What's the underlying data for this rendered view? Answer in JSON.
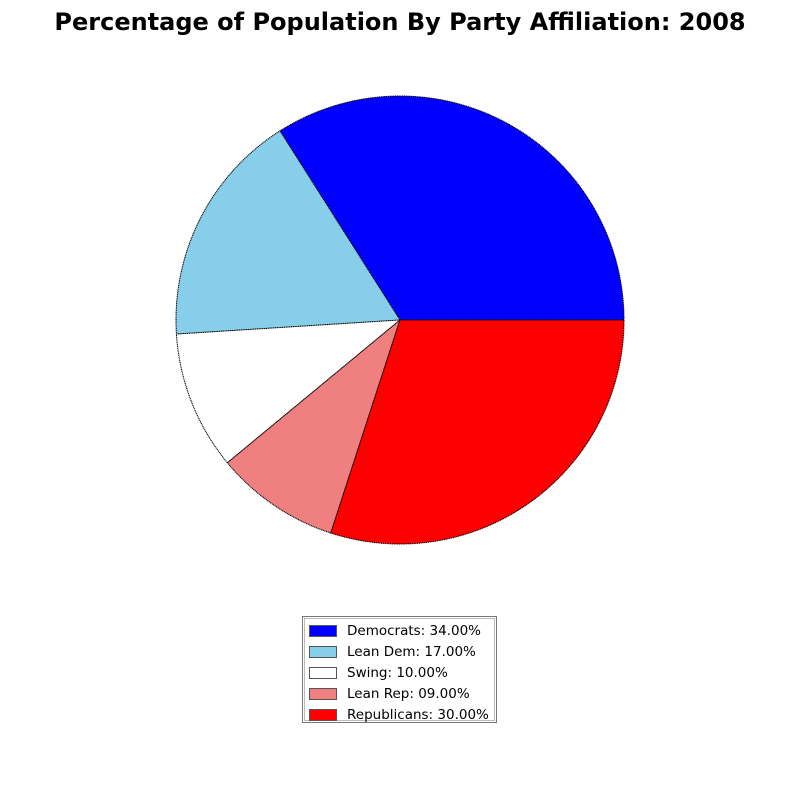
{
  "chart_data": {
    "type": "pie",
    "title": "Percentage of Population By Party Affiliation: 2008",
    "slices": [
      {
        "label": "Democrats",
        "value": 34,
        "legend": "Democrats: 34.00%",
        "color": "#0000ff"
      },
      {
        "label": "Lean Dem",
        "value": 17,
        "legend": "Lean Dem: 17.00%",
        "color": "#87ceeb"
      },
      {
        "label": "Swing",
        "value": 10,
        "legend": "Swing: 10.00%",
        "color": "#ffffff"
      },
      {
        "label": "Lean Rep",
        "value": 9,
        "legend": "Lean Rep: 09.00%",
        "color": "#f08080"
      },
      {
        "label": "Republicans",
        "value": 30,
        "legend": "Republicans: 30.00%",
        "color": "#ff0000"
      }
    ],
    "start_angle_deg": 0,
    "direction": "counterclockwise",
    "legend_position": "bottom-center"
  }
}
